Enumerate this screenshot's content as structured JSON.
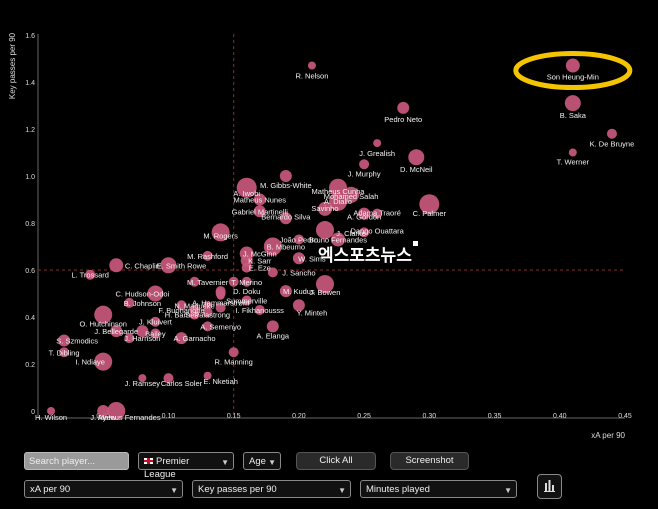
{
  "chart_data": {
    "type": "scatter",
    "title": "",
    "xlabel": "xA per 90",
    "ylabel": "Key passes per 90",
    "xlim": [
      0,
      0.45
    ],
    "ylim": [
      -0.05,
      1.6
    ],
    "xticks": [
      "0",
      "0.05",
      "0.10",
      "0.15",
      "0.20",
      "0.25",
      "0.30",
      "0.35",
      "0.40",
      "0.45"
    ],
    "xtick_values": [
      0,
      0.05,
      0.1,
      0.15,
      0.2,
      0.25,
      0.3,
      0.35,
      0.4,
      0.45
    ],
    "yticks": [
      "0",
      "0.2",
      "0.4",
      "0.6",
      "0.8",
      "1.0",
      "1.2",
      "1.4",
      "1.6"
    ],
    "ytick_values": [
      0,
      0.2,
      0.4,
      0.6,
      0.8,
      1.0,
      1.2,
      1.4,
      1.6
    ],
    "avg_x": 0.15,
    "avg_y": 0.6,
    "point_color": "#c9587d",
    "avg_line_color": "#8b2b2b",
    "highlight_color": "#f5c400",
    "highlight_player": "Son Heung-Min",
    "points": [
      {
        "name": "Son Heung-Min",
        "x": 0.41,
        "y": 1.47,
        "size": 7
      },
      {
        "name": "R. Nelson",
        "x": 0.21,
        "y": 1.47,
        "size": 4
      },
      {
        "name": "B. Saka",
        "x": 0.41,
        "y": 1.31,
        "size": 8
      },
      {
        "name": "Pedro Neto",
        "x": 0.28,
        "y": 1.29,
        "size": 6
      },
      {
        "name": "K. De Bruyne",
        "x": 0.44,
        "y": 1.18,
        "size": 5
      },
      {
        "name": "T. Werner",
        "x": 0.41,
        "y": 1.1,
        "size": 4
      },
      {
        "name": "J. Grealish",
        "x": 0.26,
        "y": 1.14,
        "size": 4
      },
      {
        "name": "D. McNeil",
        "x": 0.29,
        "y": 1.08,
        "size": 8
      },
      {
        "name": "J. Murphy",
        "x": 0.25,
        "y": 1.05,
        "size": 5
      },
      {
        "name": "M. Gibbs-White",
        "x": 0.19,
        "y": 1.0,
        "size": 6
      },
      {
        "name": "A. Iwobi",
        "x": 0.16,
        "y": 0.95,
        "size": 10
      },
      {
        "name": "Matheus Cunha",
        "x": 0.23,
        "y": 0.95,
        "size": 9
      },
      {
        "name": "Mohamed Salah",
        "x": 0.24,
        "y": 0.92,
        "size": 8
      },
      {
        "name": "Matheus Nunes",
        "x": 0.17,
        "y": 0.9,
        "size": 6
      },
      {
        "name": "A. Diallo",
        "x": 0.23,
        "y": 0.89,
        "size": 9
      },
      {
        "name": "Savinho",
        "x": 0.22,
        "y": 0.86,
        "size": 7
      },
      {
        "name": "C. Palmer",
        "x": 0.3,
        "y": 0.88,
        "size": 10
      },
      {
        "name": "Gabriel Martinelli",
        "x": 0.17,
        "y": 0.85,
        "size": 6
      },
      {
        "name": "Adama Traoré",
        "x": 0.26,
        "y": 0.84,
        "size": 5
      },
      {
        "name": "A. Gordon",
        "x": 0.25,
        "y": 0.84,
        "size": 6
      },
      {
        "name": "Bernardo Silva",
        "x": 0.19,
        "y": 0.82,
        "size": 6
      },
      {
        "name": "Dango Ouattara",
        "x": 0.25,
        "y": 0.76,
        "size": 5
      },
      {
        "name": "M. Rogers",
        "x": 0.14,
        "y": 0.76,
        "size": 9
      },
      {
        "name": "J. Clarke",
        "x": 0.22,
        "y": 0.77,
        "size": 9
      },
      {
        "name": "Bruno Fernandes",
        "x": 0.23,
        "y": 0.73,
        "size": 7
      },
      {
        "name": "João Pedro",
        "x": 0.2,
        "y": 0.73,
        "size": 5
      },
      {
        "name": "B. Mbeumo",
        "x": 0.18,
        "y": 0.7,
        "size": 9
      },
      {
        "name": "J. McGinn",
        "x": 0.16,
        "y": 0.67,
        "size": 7
      },
      {
        "name": "W. Sims",
        "x": 0.2,
        "y": 0.65,
        "size": 6
      },
      {
        "name": "M. Rashford",
        "x": 0.13,
        "y": 0.66,
        "size": 5
      },
      {
        "name": "C. Chaplin",
        "x": 0.06,
        "y": 0.62,
        "size": 7
      },
      {
        "name": "K. Sarr",
        "x": 0.16,
        "y": 0.64,
        "size": 6
      },
      {
        "name": "E. Smith Rowe",
        "x": 0.1,
        "y": 0.62,
        "size": 8
      },
      {
        "name": "E. Eze",
        "x": 0.16,
        "y": 0.61,
        "size": 5
      },
      {
        "name": "J. Sancho",
        "x": 0.18,
        "y": 0.59,
        "size": 5
      },
      {
        "name": "L. Trossard",
        "x": 0.04,
        "y": 0.58,
        "size": 5
      },
      {
        "name": "M. Tavernier",
        "x": 0.12,
        "y": 0.55,
        "size": 5
      },
      {
        "name": "D. Neto",
        "x": 0.16,
        "y": 0.55,
        "size": 5
      },
      {
        "name": "T. Merino",
        "x": 0.15,
        "y": 0.55,
        "size": 5
      },
      {
        "name": "J. Bowen",
        "x": 0.22,
        "y": 0.54,
        "size": 9
      },
      {
        "name": "C. Hudson-Odoi",
        "x": 0.09,
        "y": 0.5,
        "size": 8
      },
      {
        "name": "D. Doku",
        "x": 0.14,
        "y": 0.51,
        "size": 5
      },
      {
        "name": "Gabriel",
        "x": 0.14,
        "y": 0.49,
        "size": 4
      },
      {
        "name": "J. Kluivert",
        "x": 0.14,
        "y": 0.5,
        "size": 5
      },
      {
        "name": "M. Kudus",
        "x": 0.19,
        "y": 0.51,
        "size": 6
      },
      {
        "name": "B. Johnson",
        "x": 0.07,
        "y": 0.46,
        "size": 5
      },
      {
        "name": "N. Madueke",
        "x": 0.11,
        "y": 0.45,
        "size": 5
      },
      {
        "name": "I. Sarr",
        "x": 0.14,
        "y": 0.44,
        "size": 5
      },
      {
        "name": "F. Buonanotte",
        "x": 0.12,
        "y": 0.43,
        "size": 5
      },
      {
        "name": "Summerville",
        "x": 0.16,
        "y": 0.47,
        "size": 5
      },
      {
        "name": "H. Barnes",
        "x": 0.12,
        "y": 0.41,
        "size": 5
      },
      {
        "name": "A. Hammarstrøm",
        "x": 0.13,
        "y": 0.45,
        "size": 4
      },
      {
        "name": "Y. Minteh",
        "x": 0.2,
        "y": 0.45,
        "size": 6
      },
      {
        "name": "S. Palastrong",
        "x": 0.13,
        "y": 0.42,
        "size": 5
      },
      {
        "name": "I. Fikhanousss",
        "x": 0.17,
        "y": 0.43,
        "size": 5
      },
      {
        "name": "O. Hutchinson",
        "x": 0.05,
        "y": 0.41,
        "size": 9
      },
      {
        "name": "J. Kluivert",
        "x": 0.09,
        "y": 0.38,
        "size": 5
      },
      {
        "name": "A. Semenyo",
        "x": 0.13,
        "y": 0.36,
        "size": 5
      },
      {
        "name": "A. Elanga",
        "x": 0.18,
        "y": 0.36,
        "size": 6
      },
      {
        "name": "J. Bellegarde",
        "x": 0.06,
        "y": 0.34,
        "size": 6
      },
      {
        "name": "K. Mainoo",
        "x": 0.08,
        "y": 0.34,
        "size": 6
      },
      {
        "name": "Bailey",
        "x": 0.09,
        "y": 0.33,
        "size": 5
      },
      {
        "name": "A. Garnacho",
        "x": 0.11,
        "y": 0.31,
        "size": 6
      },
      {
        "name": "J. Harrison",
        "x": 0.07,
        "y": 0.31,
        "size": 5
      },
      {
        "name": "S. Szmodics",
        "x": 0.02,
        "y": 0.3,
        "size": 6
      },
      {
        "name": "T. Dibling",
        "x": 0.02,
        "y": 0.25,
        "size": 5
      },
      {
        "name": "R. Manning",
        "x": 0.15,
        "y": 0.25,
        "size": 5
      },
      {
        "name": "I. Ndiaye",
        "x": 0.05,
        "y": 0.21,
        "size": 9
      },
      {
        "name": "J. Ramsey",
        "x": 0.08,
        "y": 0.14,
        "size": 4
      },
      {
        "name": "Carlos Soler",
        "x": 0.1,
        "y": 0.14,
        "size": 5
      },
      {
        "name": "E. Nketiah",
        "x": 0.13,
        "y": 0.15,
        "size": 4
      },
      {
        "name": "H. Wilson",
        "x": 0.01,
        "y": 0.0,
        "size": 4
      },
      {
        "name": "J. Ayew",
        "x": 0.05,
        "y": 0.0,
        "size": 6
      },
      {
        "name": "Mateus Fernandes",
        "x": 0.06,
        "y": 0.0,
        "size": 9
      }
    ],
    "labeled": [
      {
        "text": "Son Heung-Min",
        "x": 0.41,
        "y": 1.47,
        "anchor": "middle",
        "dy": 14
      },
      {
        "text": "R. Nelson",
        "x": 0.21,
        "y": 1.47,
        "anchor": "middle",
        "dy": 13
      },
      {
        "text": "B. Saka",
        "x": 0.41,
        "y": 1.31,
        "anchor": "middle",
        "dy": 15
      },
      {
        "text": "Pedro Neto",
        "x": 0.28,
        "y": 1.29,
        "anchor": "middle",
        "dy": 14
      },
      {
        "text": "K. De Bruyne",
        "x": 0.44,
        "y": 1.18,
        "anchor": "middle",
        "dy": 13
      },
      {
        "text": "T. Werner",
        "x": 0.41,
        "y": 1.1,
        "anchor": "middle",
        "dy": 12
      },
      {
        "text": "J. Grealish",
        "x": 0.26,
        "y": 1.14,
        "anchor": "middle",
        "dy": 13
      },
      {
        "text": "D. McNeil",
        "x": 0.29,
        "y": 1.08,
        "anchor": "middle",
        "dy": 15
      },
      {
        "text": "J. Murphy",
        "x": 0.25,
        "y": 1.05,
        "anchor": "middle",
        "dy": 12
      },
      {
        "text": "M. Gibbs-White",
        "x": 0.19,
        "y": 1.0,
        "anchor": "middle",
        "dy": 12
      },
      {
        "text": "A. Iwobi",
        "x": 0.16,
        "y": 0.95,
        "anchor": "middle",
        "dy": 8
      },
      {
        "text": "Matheus Cunha",
        "x": 0.23,
        "y": 0.95,
        "anchor": "middle",
        "dy": 6
      },
      {
        "text": "Mohamed Salah",
        "x": 0.24,
        "y": 0.92,
        "anchor": "middle",
        "dy": 4
      },
      {
        "text": "Matheus Nunes",
        "x": 0.17,
        "y": 0.9,
        "anchor": "middle",
        "dy": 3
      },
      {
        "text": "A. Diallo",
        "x": 0.23,
        "y": 0.89,
        "anchor": "middle",
        "dy": 2
      },
      {
        "text": "Savinho",
        "x": 0.22,
        "y": 0.86,
        "anchor": "middle",
        "dy": 2
      },
      {
        "text": "C. Palmer",
        "x": 0.3,
        "y": 0.88,
        "anchor": "middle",
        "dy": 12
      },
      {
        "text": "Gabriel Martinelli",
        "x": 0.17,
        "y": 0.85,
        "anchor": "middle",
        "dy": 3
      },
      {
        "text": "Adama Traoré",
        "x": 0.26,
        "y": 0.84,
        "anchor": "middle",
        "dy": 2
      },
      {
        "text": "A. Gordon",
        "x": 0.25,
        "y": 0.84,
        "anchor": "middle",
        "dy": 6
      },
      {
        "text": "Bernardo Silva",
        "x": 0.19,
        "y": 0.82,
        "anchor": "middle",
        "dy": 1
      },
      {
        "text": "Dango Ouattara",
        "x": 0.26,
        "y": 0.76,
        "anchor": "middle",
        "dy": 1
      },
      {
        "text": "M. Rogers",
        "x": 0.14,
        "y": 0.76,
        "anchor": "middle",
        "dy": 6
      },
      {
        "text": "J. Clarke",
        "x": 0.24,
        "y": 0.77,
        "anchor": "middle",
        "dy": 6
      },
      {
        "text": "Bruno Fernandes",
        "x": 0.23,
        "y": 0.73,
        "anchor": "middle",
        "dy": 3
      },
      {
        "text": "João Pedro",
        "x": 0.2,
        "y": 0.73,
        "anchor": "middle",
        "dy": 3
      },
      {
        "text": "B. Mbeumo",
        "x": 0.19,
        "y": 0.7,
        "anchor": "middle",
        "dy": 3
      },
      {
        "text": "J. McGinn",
        "x": 0.17,
        "y": 0.67,
        "anchor": "middle",
        "dy": 3
      },
      {
        "text": "W. Sims",
        "x": 0.21,
        "y": 0.65,
        "anchor": "middle",
        "dy": 3
      },
      {
        "text": "M. Rashford",
        "x": 0.13,
        "y": 0.66,
        "anchor": "middle",
        "dy": 3
      },
      {
        "text": "C. Chaplin",
        "x": 0.08,
        "y": 0.62,
        "anchor": "middle",
        "dy": 3
      },
      {
        "text": "K. Sarr",
        "x": 0.17,
        "y": 0.64,
        "anchor": "middle",
        "dy": 3
      },
      {
        "text": "E. Smith Rowe",
        "x": 0.11,
        "y": 0.62,
        "anchor": "middle",
        "dy": 3
      },
      {
        "text": "E. Eze",
        "x": 0.17,
        "y": 0.61,
        "anchor": "middle",
        "dy": 3
      },
      {
        "text": "J. Sancho",
        "x": 0.2,
        "y": 0.59,
        "anchor": "middle",
        "dy": 3
      },
      {
        "text": "L. Trossard",
        "x": 0.04,
        "y": 0.58,
        "anchor": "middle",
        "dy": 3
      },
      {
        "text": "M. Tavernier",
        "x": 0.13,
        "y": 0.55,
        "anchor": "middle",
        "dy": 3
      },
      {
        "text": "T. Merino",
        "x": 0.16,
        "y": 0.55,
        "anchor": "middle",
        "dy": 3
      },
      {
        "text": "J. Bowen",
        "x": 0.22,
        "y": 0.54,
        "anchor": "middle",
        "dy": 11
      },
      {
        "text": "C. Hudson-Odoi",
        "x": 0.08,
        "y": 0.5,
        "anchor": "middle",
        "dy": 3
      },
      {
        "text": "D. Doku",
        "x": 0.16,
        "y": 0.51,
        "anchor": "middle",
        "dy": 3
      },
      {
        "text": "M. Kudus",
        "x": 0.2,
        "y": 0.51,
        "anchor": "middle",
        "dy": 3
      },
      {
        "text": "B. Johnson",
        "x": 0.08,
        "y": 0.46,
        "anchor": "middle",
        "dy": 3
      },
      {
        "text": "N. Madueke",
        "x": 0.12,
        "y": 0.45,
        "anchor": "middle",
        "dy": 3
      },
      {
        "text": "Summerville",
        "x": 0.16,
        "y": 0.47,
        "anchor": "middle",
        "dy": 3
      },
      {
        "text": "A. Hammarstrøm",
        "x": 0.14,
        "y": 0.45,
        "anchor": "middle",
        "dy": 0
      },
      {
        "text": "F. Buonanotte",
        "x": 0.11,
        "y": 0.43,
        "anchor": "middle",
        "dy": 3
      },
      {
        "text": "Y. Minteh",
        "x": 0.21,
        "y": 0.45,
        "anchor": "middle",
        "dy": 10
      },
      {
        "text": "H. Barnes",
        "x": 0.11,
        "y": 0.41,
        "anchor": "middle",
        "dy": 3
      },
      {
        "text": "S. Palastrong",
        "x": 0.13,
        "y": 0.42,
        "anchor": "middle",
        "dy": 5
      },
      {
        "text": "I. Fikhanousss",
        "x": 0.17,
        "y": 0.43,
        "anchor": "middle",
        "dy": 3
      },
      {
        "text": "O. Hutchinson",
        "x": 0.05,
        "y": 0.41,
        "anchor": "middle",
        "dy": 12
      },
      {
        "text": "J. Kluivert",
        "x": 0.09,
        "y": 0.38,
        "anchor": "middle",
        "dy": 3
      },
      {
        "text": "A. Semenyo",
        "x": 0.14,
        "y": 0.36,
        "anchor": "middle",
        "dy": 3
      },
      {
        "text": "A. Elanga",
        "x": 0.18,
        "y": 0.36,
        "anchor": "middle",
        "dy": 12
      },
      {
        "text": "J. Bellegarde",
        "x": 0.06,
        "y": 0.34,
        "anchor": "middle",
        "dy": 3
      },
      {
        "text": "Bailey",
        "x": 0.09,
        "y": 0.33,
        "anchor": "middle",
        "dy": 3
      },
      {
        "text": "A. Garnacho",
        "x": 0.12,
        "y": 0.31,
        "anchor": "middle",
        "dy": 3
      },
      {
        "text": "J. Harrison",
        "x": 0.08,
        "y": 0.31,
        "anchor": "middle",
        "dy": 3
      },
      {
        "text": "S. Szmodics",
        "x": 0.03,
        "y": 0.3,
        "anchor": "middle",
        "dy": 3
      },
      {
        "text": "T. Dibling",
        "x": 0.02,
        "y": 0.25,
        "anchor": "middle",
        "dy": 3
      },
      {
        "text": "R. Manning",
        "x": 0.15,
        "y": 0.25,
        "anchor": "middle",
        "dy": 12
      },
      {
        "text": "I. Ndiaye",
        "x": 0.04,
        "y": 0.21,
        "anchor": "middle",
        "dy": 3
      },
      {
        "text": "J. Ramsey",
        "x": 0.08,
        "y": 0.14,
        "anchor": "middle",
        "dy": 8
      },
      {
        "text": "Carlos Soler",
        "x": 0.11,
        "y": 0.14,
        "anchor": "middle",
        "dy": 8
      },
      {
        "text": "E. Nketiah",
        "x": 0.14,
        "y": 0.15,
        "anchor": "middle",
        "dy": 8
      },
      {
        "text": "H. Wilson",
        "x": 0.01,
        "y": 0.0,
        "anchor": "middle",
        "dy": 9
      },
      {
        "text": "J. Ayew",
        "x": 0.05,
        "y": 0.0,
        "anchor": "middle",
        "dy": 9
      },
      {
        "text": "Mateus Fernandes",
        "x": 0.07,
        "y": 0.0,
        "anchor": "middle",
        "dy": 9
      }
    ]
  },
  "watermark": "엑스포츠뉴스",
  "controls": {
    "search_placeholder": "Search player...",
    "league": "Premier League",
    "age": "Age",
    "click_all": "Click All",
    "screenshot": "Screenshot",
    "x_metric": "xA per 90",
    "y_metric": "Key passes per 90",
    "size_metric": "Minutes played",
    "chart_icon": "bar-chart-icon"
  }
}
